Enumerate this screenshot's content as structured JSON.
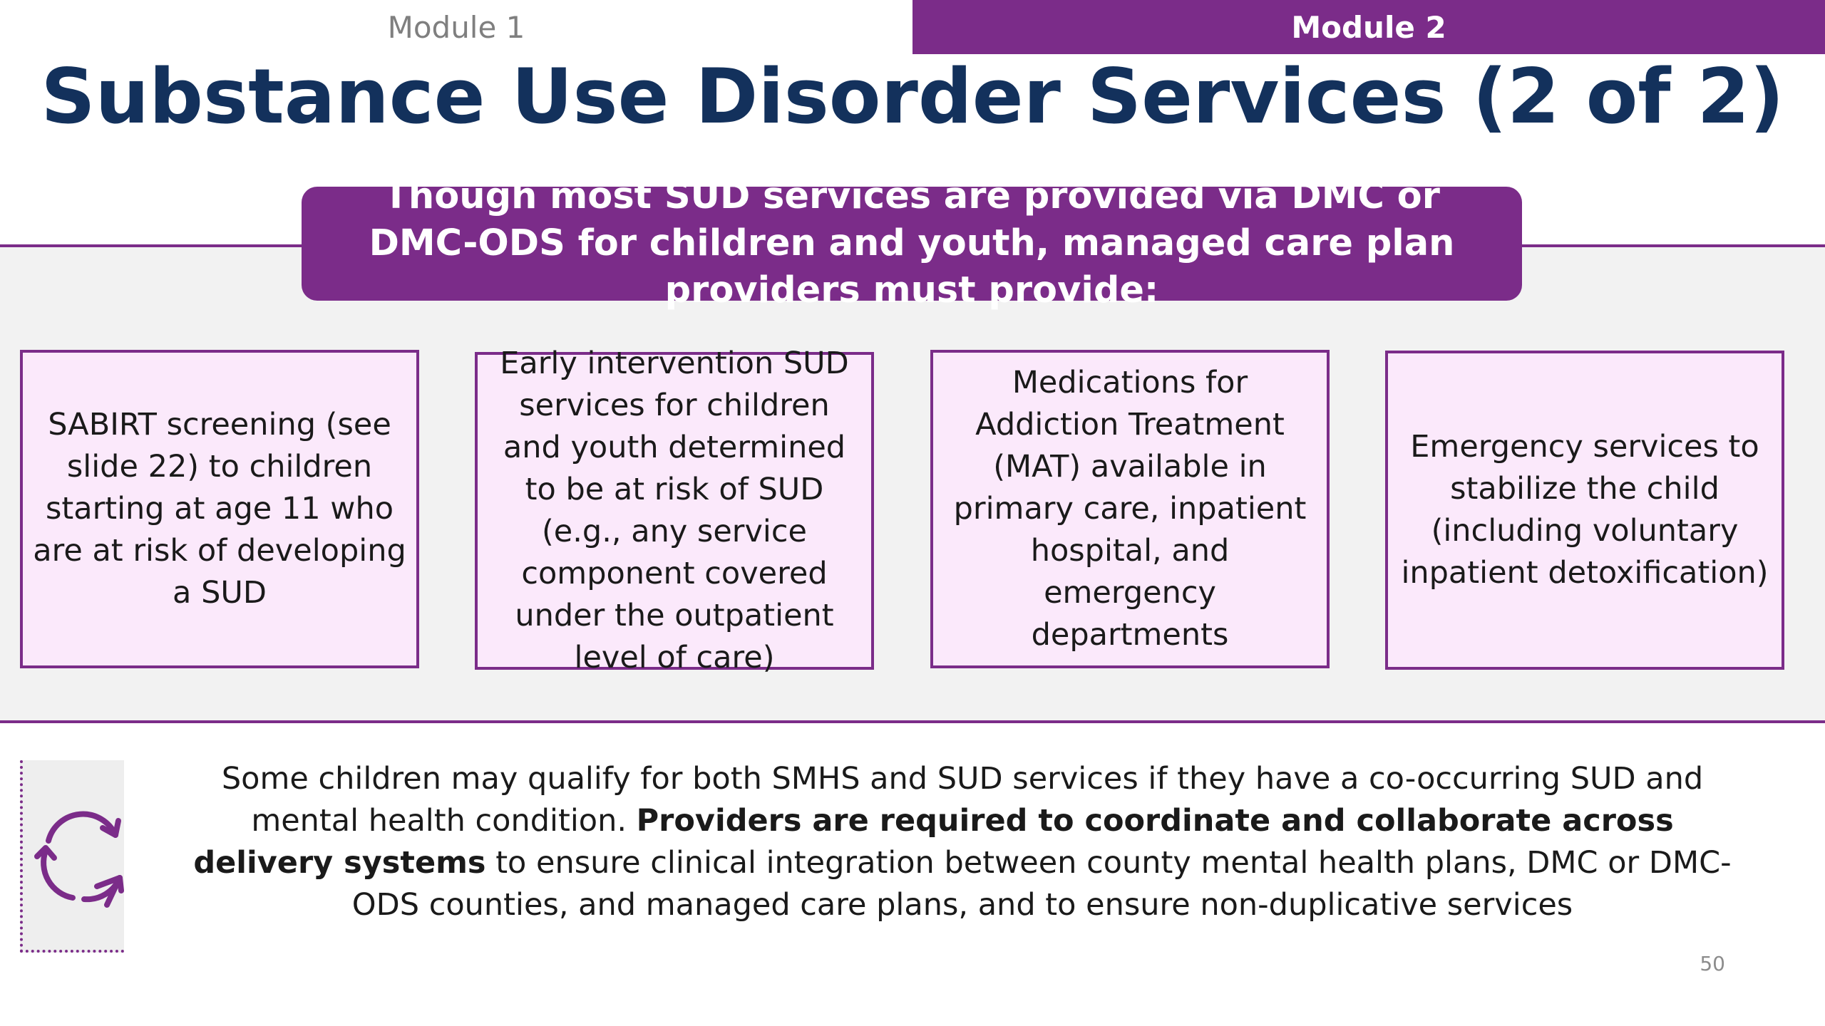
{
  "nav": {
    "module1_label": "Module 1",
    "module2_label": "Module 2"
  },
  "slide": {
    "title": "Substance Use Disorder Services (2 of 2)",
    "banner": "Though most SUD services are provided via DMC or DMC-ODS for children and youth, managed care plan providers must provide:",
    "cards": [
      {
        "text": "SABIRT screening (see slide 22) to children starting at age 11 who are at risk of developing a SUD"
      },
      {
        "text": "Early intervention SUD services for children and youth determined to be at risk of SUD (e.g., any service component covered under the outpatient level of care)"
      },
      {
        "text": "Medications for Addiction Treatment (MAT) available in primary care, inpatient hospital, and emergency departments"
      },
      {
        "text": "Emergency services to stabilize the child (including voluntary inpatient detoxification)"
      }
    ],
    "note": {
      "part1": "Some children may qualify for both SMHS and SUD services if they have a co-occurring SUD and mental health condition. ",
      "bold": "Providers are required to coordinate and collaborate across delivery systems",
      "part2": " to ensure clinical integration between county mental health plans, DMC or DMC-ODS counties, and managed care plans, and to ensure non-duplicative services"
    },
    "page_number": "50"
  },
  "icons": {
    "note_icon": "cycle-arrows-icon"
  },
  "colors": {
    "accent_purple": "#7b2c89",
    "title_navy": "#13315c",
    "card_fill": "#fbe9fb",
    "band_gray": "#f2f2f2",
    "muted_text": "#7f7f7f"
  }
}
